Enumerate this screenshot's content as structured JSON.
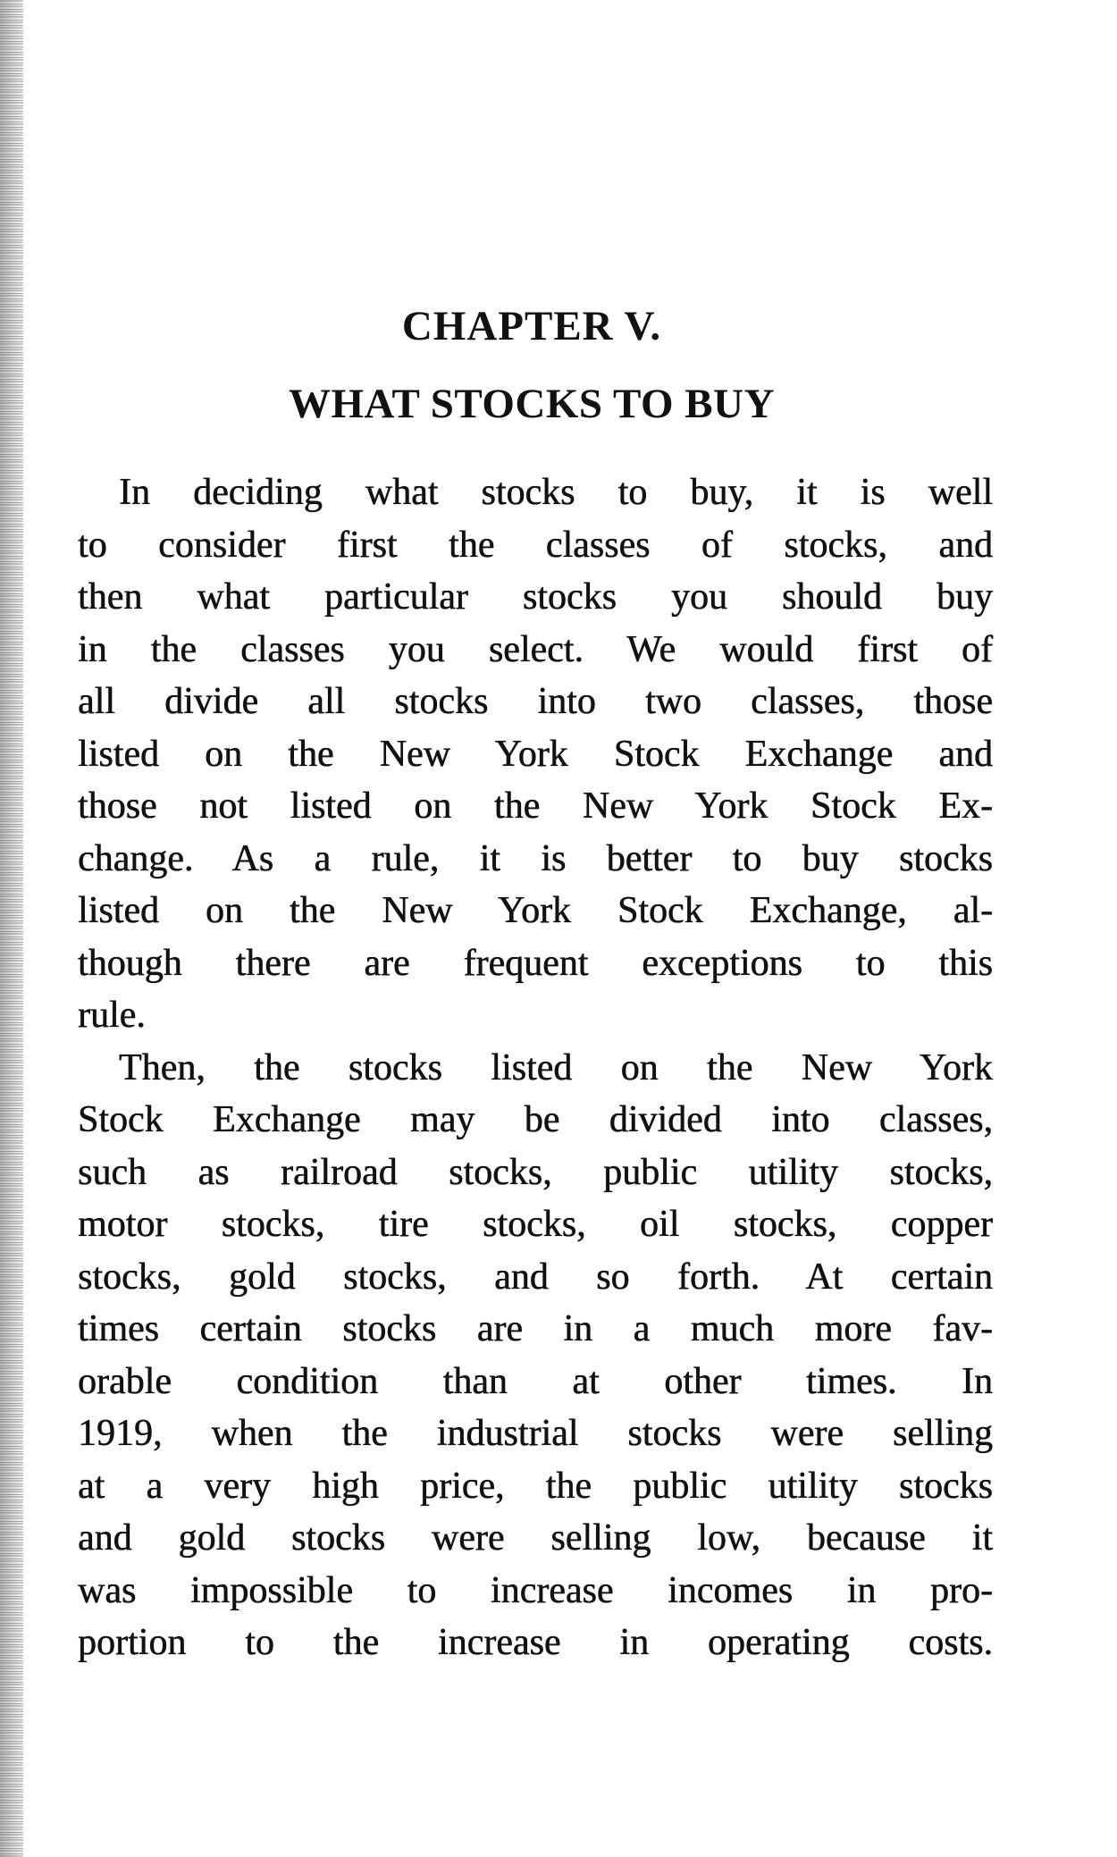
{
  "chapter": "CHAPTER V.",
  "title": "WHAT STOCKS TO BUY",
  "paragraphs": [
    {
      "lines": [
        "In deciding what stocks to buy, it is well",
        "to consider first the classes of stocks, and",
        "then what particular stocks you should buy",
        "in the classes you select.  We would first of",
        "all divide all stocks into two classes, those",
        "listed on the New York Stock Exchange and",
        "those not listed on the New York Stock Ex-",
        "change.  As a rule, it is better to buy stocks",
        "listed on the New York Stock Exchange, al-",
        "though there are frequent exceptions to this",
        "rule."
      ]
    },
    {
      "lines": [
        "Then, the stocks listed on the New York",
        "Stock Exchange may be divided into classes,",
        "such as railroad stocks, public utility stocks,",
        "motor stocks, tire stocks, oil stocks, copper",
        "stocks, gold stocks, and so forth.  At certain",
        "times certain stocks are in a much more fav-",
        "orable condition than at other times.  In",
        "1919, when the industrial stocks were selling",
        "at a very high price, the public utility stocks",
        "and gold stocks were selling low, because it",
        "was impossible to increase incomes in pro-",
        "portion to the increase in operating costs."
      ]
    }
  ]
}
